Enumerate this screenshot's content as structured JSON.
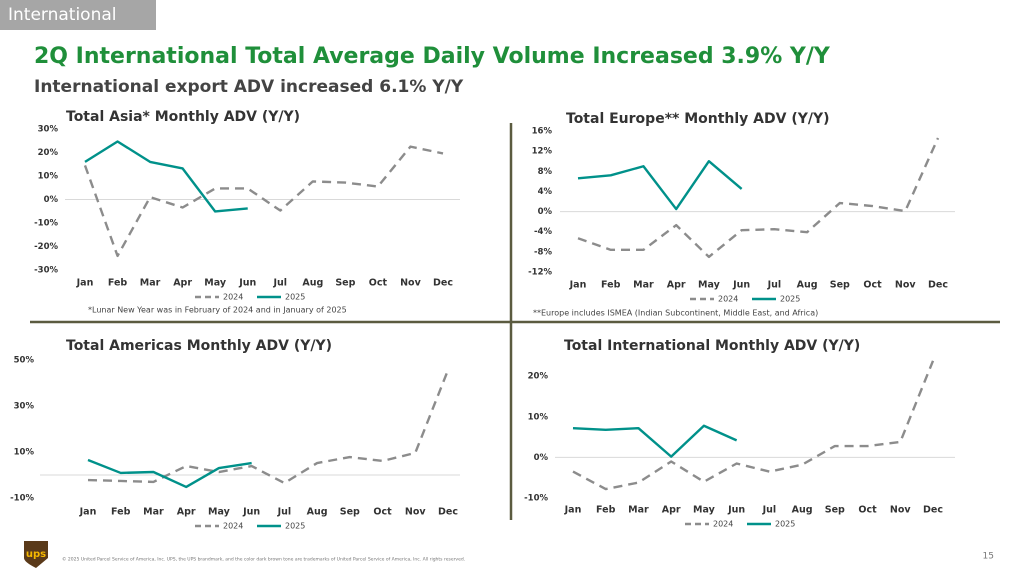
{
  "header": "International",
  "title": "2Q International Total Average Daily Volume Increased 3.9% Y/Y",
  "subtitle": "International export ADV increased 6.1% Y/Y",
  "logo": "ups",
  "footer": "© 2025 United Parcel Service of America, Inc. UPS, the UPS brandmark, and the color dark brown tone are trademarks of United Parcel Service of America, Inc. All rights reserved.",
  "page_number": "15",
  "chart_data": [
    {
      "type": "line",
      "title": "Total Asia* Monthly ADV (Y/Y)",
      "note": "*Lunar New Year was in February of 2024 and in January of 2025",
      "categories": [
        "Jan",
        "Feb",
        "Mar",
        "Apr",
        "May",
        "Jun",
        "Jul",
        "Aug",
        "Sep",
        "Oct",
        "Nov",
        "Dec"
      ],
      "series": [
        {
          "name": "2024",
          "color": "#8c8c8c",
          "dashed": true,
          "values": [
            14.5,
            -24,
            1,
            -3.4,
            4.7,
            4.7,
            -4.7,
            7.7,
            7.2,
            5.5,
            22.5,
            19.6
          ]
        },
        {
          "name": "2025",
          "color": "#00918a",
          "dashed": false,
          "values": [
            16,
            24.7,
            16,
            13.2,
            -5.1,
            -3.8,
            null,
            null,
            null,
            null,
            null,
            null
          ]
        }
      ],
      "ylim": [
        -30,
        30
      ],
      "yticks": [
        {
          "value": -30,
          "label": "-30%"
        },
        {
          "value": -20,
          "label": "-20%"
        },
        {
          "value": -10,
          "label": "-10%"
        },
        {
          "value": 0,
          "label": "0%"
        },
        {
          "value": 10,
          "label": "10%"
        },
        {
          "value": 20,
          "label": "20%"
        },
        {
          "value": 30,
          "label": "30%"
        }
      ],
      "legend": "bottom",
      "grid": false
    },
    {
      "type": "line",
      "title": "Total Europe** Monthly ADV (Y/Y)",
      "note": "**Europe includes ISMEA (Indian Subcontinent, Middle East, and Africa)",
      "categories": [
        "Jan",
        "Feb",
        "Mar",
        "Apr",
        "May",
        "Jun",
        "Jul",
        "Aug",
        "Sep",
        "Oct",
        "Nov",
        "Dec"
      ],
      "series": [
        {
          "name": "2024",
          "color": "#8c8c8c",
          "dashed": true,
          "values": [
            -5.3,
            -7.6,
            -7.6,
            -2.7,
            -9,
            -3.7,
            -3.5,
            -4.1,
            1.7,
            1.1,
            0.1,
            14.6
          ]
        },
        {
          "name": "2025",
          "color": "#00918a",
          "dashed": false,
          "values": [
            6.6,
            7.2,
            9,
            0.5,
            10,
            4.5,
            null,
            null,
            null,
            null,
            null,
            null
          ]
        }
      ],
      "ylim": [
        -12,
        16
      ],
      "yticks": [
        {
          "value": -12,
          "label": "-12%"
        },
        {
          "value": -8,
          "label": "-8%"
        },
        {
          "value": -4,
          "label": "-4%"
        },
        {
          "value": 0,
          "label": "0%"
        },
        {
          "value": 4,
          "label": "4%"
        },
        {
          "value": 8,
          "label": "8%"
        },
        {
          "value": 12,
          "label": "12%"
        },
        {
          "value": 16,
          "label": "16%"
        }
      ],
      "legend": "bottom",
      "grid": false
    },
    {
      "type": "line",
      "title": "Total Americas Monthly ADV (Y/Y)",
      "categories": [
        "Jan",
        "Feb",
        "Mar",
        "Apr",
        "May",
        "Jun",
        "Jul",
        "Aug",
        "Sep",
        "Oct",
        "Nov",
        "Dec"
      ],
      "series": [
        {
          "name": "2024",
          "color": "#8c8c8c",
          "dashed": true,
          "values": [
            -2.2,
            -2.6,
            -3,
            3.9,
            1.3,
            3.9,
            -3.5,
            5.2,
            7.8,
            6.1,
            9.6,
            45.6
          ]
        },
        {
          "name": "2025",
          "color": "#00918a",
          "dashed": false,
          "values": [
            6.5,
            0.9,
            1.3,
            -5.2,
            3,
            5.2,
            null,
            null,
            null,
            null,
            null,
            null
          ]
        }
      ],
      "ylim": [
        -10,
        50
      ],
      "yticks": [
        {
          "value": -10,
          "label": "-10%"
        },
        {
          "value": 10,
          "label": "10%"
        },
        {
          "value": 30,
          "label": "30%"
        },
        {
          "value": 50,
          "label": "50%"
        }
      ],
      "legend": "bottom",
      "grid": false
    },
    {
      "type": "line",
      "title": "Total International Monthly ADV (Y/Y)",
      "categories": [
        "Jan",
        "Feb",
        "Mar",
        "Apr",
        "May",
        "Jun",
        "Jul",
        "Aug",
        "Sep",
        "Oct",
        "Nov",
        "Dec"
      ],
      "series": [
        {
          "name": "2024",
          "color": "#8c8c8c",
          "dashed": true,
          "values": [
            -3.5,
            -7.8,
            -6.2,
            -1,
            -6,
            -1.5,
            -3.5,
            -1.8,
            2.8,
            2.8,
            3.8,
            23.8
          ]
        },
        {
          "name": "2025",
          "color": "#00918a",
          "dashed": false,
          "values": [
            7.2,
            6.8,
            7.2,
            0.2,
            7.8,
            4.2,
            null,
            null,
            null,
            null,
            null,
            null
          ]
        }
      ],
      "ylim": [
        -10,
        24
      ],
      "yticks": [
        {
          "value": -10,
          "label": "-10%"
        },
        {
          "value": 0,
          "label": "0%"
        },
        {
          "value": 10,
          "label": "10%"
        },
        {
          "value": 20,
          "label": "20%"
        }
      ],
      "legend": "bottom",
      "grid": false
    }
  ]
}
